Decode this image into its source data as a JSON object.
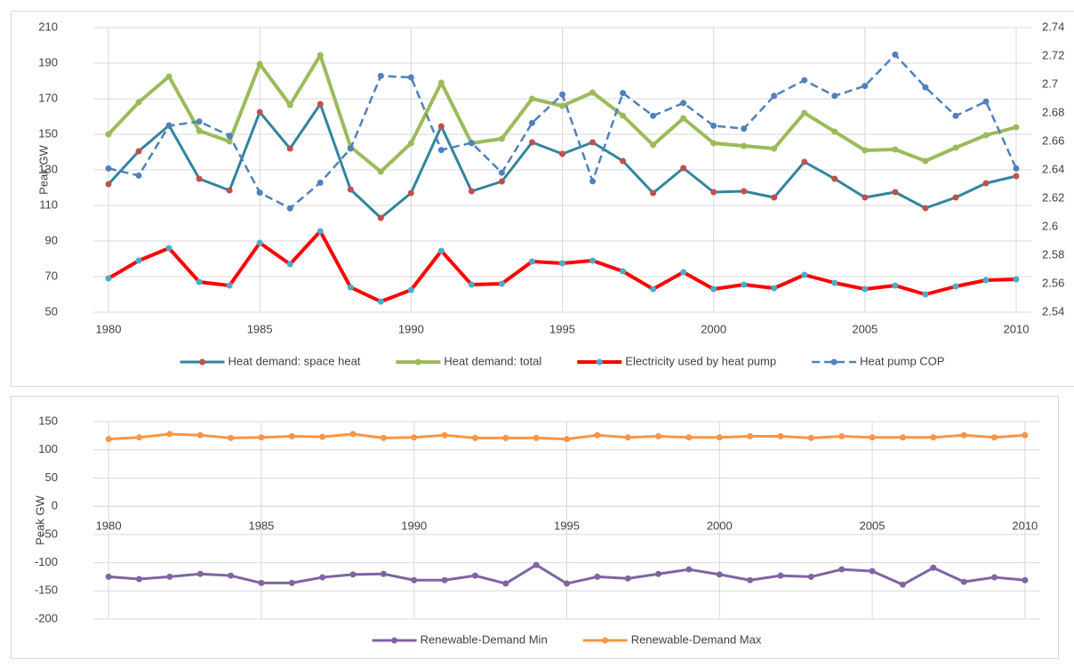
{
  "chart_data": [
    {
      "type": "line",
      "y_label": "Peak GW",
      "x": [
        1980,
        1981,
        1982,
        1983,
        1984,
        1985,
        1986,
        1987,
        1988,
        1989,
        1990,
        1991,
        1992,
        1993,
        1994,
        1995,
        1996,
        1997,
        1998,
        1999,
        2000,
        2001,
        2002,
        2003,
        2004,
        2005,
        2006,
        2007,
        2008,
        2009,
        2010
      ],
      "xlim": [
        1979.5,
        2010.5
      ],
      "xticks": [
        1980,
        1985,
        1990,
        1995,
        2000,
        2005,
        2010
      ],
      "ylim": [
        50,
        210
      ],
      "yticks": [
        50,
        70,
        90,
        110,
        130,
        150,
        170,
        190,
        210
      ],
      "y2lim": [
        2.54,
        2.74
      ],
      "y2ticks": [
        2.54,
        2.56,
        2.58,
        2.6,
        2.62,
        2.64,
        2.66,
        2.68,
        2.7,
        2.72,
        2.74
      ],
      "grid": true,
      "legend": "bottom",
      "series": [
        {
          "name": "Heat demand: space heat",
          "color": "#31859c",
          "marker_color": "#c0504d",
          "dashed": false,
          "width": 3,
          "values": [
            122,
            140.5,
            155,
            125,
            118.5,
            162.5,
            142,
            167,
            119,
            103,
            117,
            154.5,
            118,
            123.5,
            145.5,
            139,
            145.5,
            135,
            117,
            131,
            117.5,
            118,
            114.5,
            134.5,
            125,
            114.5,
            117.5,
            108.5,
            114.5,
            122.5,
            126.5
          ]
        },
        {
          "name": "Heat demand: total",
          "color": "#9bbb59",
          "marker_color": "#9bbb59",
          "dashed": false,
          "width": 4,
          "values": [
            150,
            168,
            182.5,
            152,
            146,
            189.5,
            166.5,
            194.5,
            143,
            129,
            145,
            179,
            145,
            147.5,
            170,
            166,
            173.5,
            160.5,
            144,
            159,
            145,
            143.5,
            142,
            162,
            151.5,
            141,
            141.5,
            135,
            142.5,
            149.5,
            154
          ]
        },
        {
          "name": "Electricity used by heat pump",
          "color": "#ff0000",
          "marker_color": "#4bacc6",
          "dashed": false,
          "width": 4,
          "values": [
            69,
            79,
            86,
            67,
            65,
            89,
            77,
            95.5,
            64,
            56,
            62.5,
            84.5,
            65.5,
            66,
            78.5,
            77.5,
            79,
            73,
            63,
            72.5,
            63,
            65.5,
            63.5,
            71,
            66.5,
            63,
            65,
            60,
            64.5,
            68,
            68.5
          ]
        },
        {
          "name": "Heat pump COP",
          "color": "#4f81bd",
          "marker_color": "#4f81bd",
          "dashed": true,
          "width": 2.5,
          "axis": "y2",
          "values": [
            2.641,
            2.636,
            2.671,
            2.674,
            2.664,
            2.624,
            2.613,
            2.631,
            2.655,
            2.706,
            2.705,
            2.654,
            2.659,
            2.638,
            2.673,
            2.693,
            2.632,
            2.694,
            2.678,
            2.687,
            2.671,
            2.669,
            2.692,
            2.703,
            2.692,
            2.699,
            2.721,
            2.698,
            2.678,
            2.688,
            2.641
          ]
        }
      ]
    },
    {
      "type": "line",
      "y_label": "Peak GW",
      "x": [
        1980,
        1981,
        1982,
        1983,
        1984,
        1985,
        1986,
        1987,
        1988,
        1989,
        1990,
        1991,
        1992,
        1993,
        1994,
        1995,
        1996,
        1997,
        1998,
        1999,
        2000,
        2001,
        2002,
        2003,
        2004,
        2005,
        2006,
        2007,
        2008,
        2009,
        2010
      ],
      "xlim": [
        1979.5,
        2010.5
      ],
      "xticks": [
        1980,
        1985,
        1990,
        1995,
        2000,
        2005,
        2010
      ],
      "ylim": [
        -200,
        150
      ],
      "yticks": [
        -200,
        -150,
        -100,
        -50,
        0,
        50,
        100,
        150
      ],
      "grid": true,
      "legend": "bottom",
      "series": [
        {
          "name": "Renewable-Demand Min",
          "color": "#8064a2",
          "marker_color": "#8064a2",
          "dashed": false,
          "width": 3,
          "values": [
            -125,
            -129,
            -125,
            -120,
            -123,
            -136,
            -136,
            -126,
            -121,
            -120,
            -131,
            -131,
            -123,
            -137,
            -104,
            -137,
            -125,
            -128,
            -120,
            -112,
            -121,
            -131,
            -123,
            -125,
            -112,
            -115,
            -139,
            -109,
            -134,
            -126,
            -131
          ]
        },
        {
          "name": "Renewable-Demand Max",
          "color": "#f79646",
          "marker_color": "#f79646",
          "dashed": false,
          "width": 3,
          "values": [
            119,
            122,
            128,
            126,
            121,
            122,
            124,
            123,
            128,
            121,
            122,
            126,
            121,
            121,
            121,
            119,
            126,
            122,
            124,
            122,
            122,
            124,
            124,
            121,
            124,
            122,
            122,
            122,
            126,
            122,
            126
          ]
        }
      ]
    }
  ]
}
